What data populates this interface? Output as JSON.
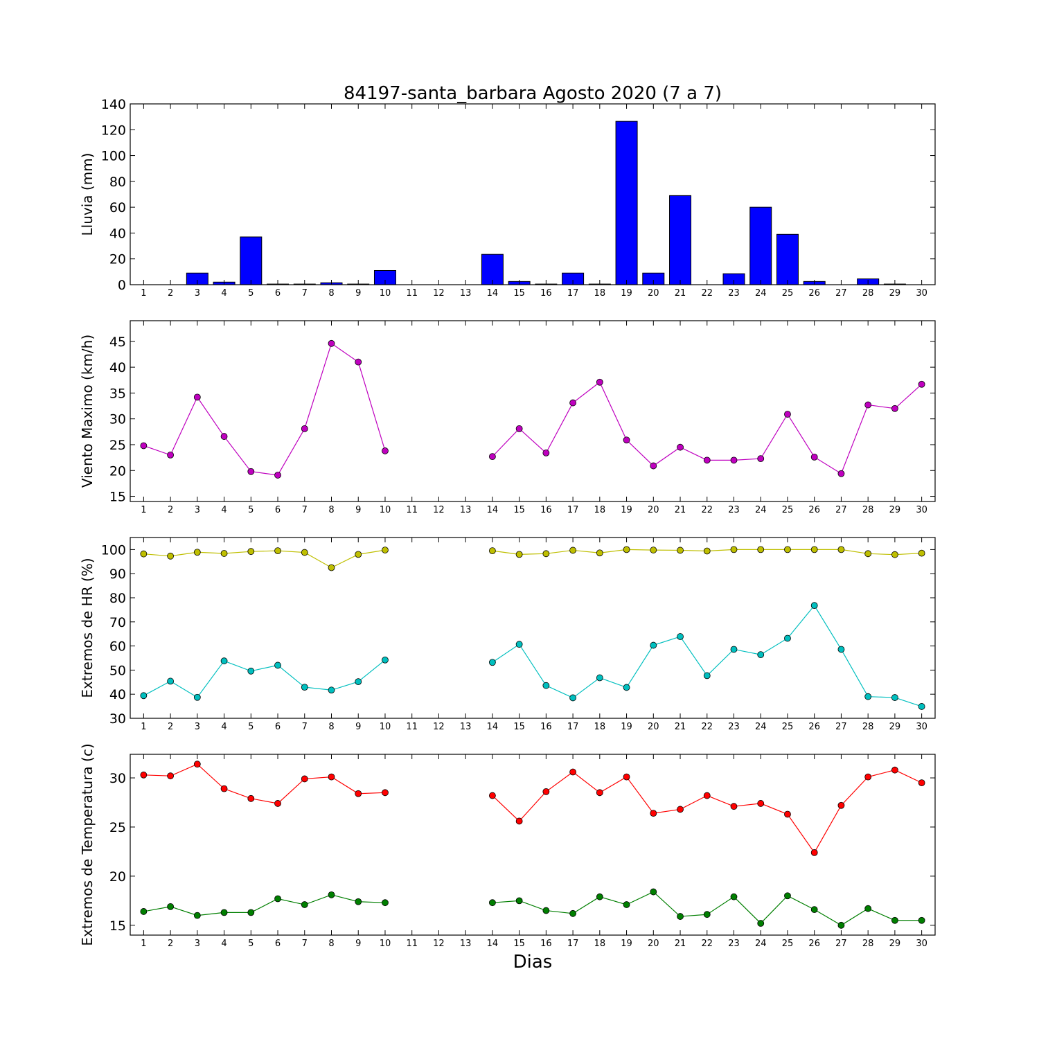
{
  "figure": {
    "title": "84197-santa_barbara Agosto 2020  (7 a 7)",
    "xlabel": "Dias"
  },
  "chart_data": [
    {
      "type": "bar",
      "ylabel": "Lluvia (mm)",
      "ylim": [
        0,
        140
      ],
      "yticks": [
        0,
        20,
        40,
        60,
        80,
        100,
        120,
        140
      ],
      "x": [
        1,
        2,
        3,
        4,
        5,
        6,
        7,
        8,
        9,
        10,
        11,
        12,
        13,
        14,
        15,
        16,
        17,
        18,
        19,
        20,
        21,
        22,
        23,
        24,
        25,
        26,
        27,
        28,
        29,
        30
      ],
      "series": [
        {
          "color": "#0000ff",
          "values": [
            0,
            0,
            9,
            2,
            37,
            0.5,
            0.5,
            1.5,
            0.5,
            11,
            0,
            0,
            0,
            23.5,
            2.5,
            0.5,
            9,
            0.5,
            126.5,
            9,
            69,
            0,
            8.5,
            60,
            39,
            2.5,
            0,
            4.5,
            0.5,
            0
          ]
        }
      ]
    },
    {
      "type": "line",
      "ylabel": "Viento Maximo (km/h)",
      "ylim": [
        14,
        49
      ],
      "yticks": [
        15,
        20,
        25,
        30,
        35,
        40,
        45
      ],
      "x": [
        1,
        2,
        3,
        4,
        5,
        6,
        7,
        8,
        9,
        10,
        11,
        12,
        13,
        14,
        15,
        16,
        17,
        18,
        19,
        20,
        21,
        22,
        23,
        24,
        25,
        26,
        27,
        28,
        29,
        30
      ],
      "series": [
        {
          "color": "#bf00bf",
          "values": [
            24.8,
            23.0,
            34.2,
            26.6,
            19.8,
            19.1,
            28.1,
            44.6,
            41.0,
            23.8,
            null,
            null,
            null,
            22.7,
            28.1,
            23.4,
            33.1,
            37.1,
            25.9,
            20.9,
            24.5,
            22.0,
            22.0,
            22.3,
            30.9,
            22.6,
            19.4,
            32.7,
            32.0,
            36.7
          ]
        }
      ]
    },
    {
      "type": "line",
      "ylabel": "Extremos de HR (%)",
      "ylim": [
        30,
        105
      ],
      "yticks": [
        30,
        40,
        50,
        60,
        70,
        80,
        90,
        100
      ],
      "x": [
        1,
        2,
        3,
        4,
        5,
        6,
        7,
        8,
        9,
        10,
        11,
        12,
        13,
        14,
        15,
        16,
        17,
        18,
        19,
        20,
        21,
        22,
        23,
        24,
        25,
        26,
        27,
        28,
        29,
        30
      ],
      "series": [
        {
          "color": "#bfbf00",
          "values": [
            98.2,
            97.3,
            98.9,
            98.4,
            99.2,
            99.5,
            98.8,
            92.5,
            98.0,
            99.8,
            null,
            null,
            null,
            99.5,
            98.0,
            98.3,
            99.7,
            98.6,
            100,
            99.8,
            99.7,
            99.4,
            100,
            100,
            100,
            100,
            100,
            98.3,
            97.9,
            98.5
          ]
        },
        {
          "color": "#00bfbf",
          "values": [
            39.4,
            45.4,
            38.7,
            53.8,
            49.6,
            52.0,
            42.9,
            41.7,
            45.2,
            54.2,
            null,
            null,
            null,
            53.2,
            60.7,
            43.6,
            38.5,
            46.8,
            42.8,
            60.3,
            63.9,
            47.7,
            58.6,
            56.4,
            63.2,
            76.8,
            58.6,
            39.0,
            38.6,
            34.9
          ]
        }
      ]
    },
    {
      "type": "line",
      "ylabel": "Extremos de Temperatura (c)",
      "ylim": [
        14,
        32.4
      ],
      "yticks": [
        15,
        20,
        25,
        30
      ],
      "x": [
        1,
        2,
        3,
        4,
        5,
        6,
        7,
        8,
        9,
        10,
        11,
        12,
        13,
        14,
        15,
        16,
        17,
        18,
        19,
        20,
        21,
        22,
        23,
        24,
        25,
        26,
        27,
        28,
        29,
        30
      ],
      "series": [
        {
          "color": "#ff0000",
          "values": [
            30.3,
            30.2,
            31.4,
            28.9,
            27.9,
            27.4,
            29.9,
            30.1,
            28.4,
            28.5,
            null,
            null,
            null,
            28.2,
            25.6,
            28.6,
            30.6,
            28.5,
            30.1,
            26.4,
            26.8,
            28.2,
            27.1,
            27.4,
            26.3,
            22.4,
            27.2,
            30.1,
            30.8,
            29.5
          ]
        },
        {
          "color": "#007f00",
          "values": [
            16.4,
            16.9,
            16.0,
            16.3,
            16.3,
            17.7,
            17.1,
            18.1,
            17.4,
            17.3,
            null,
            null,
            null,
            17.3,
            17.5,
            16.5,
            16.2,
            17.9,
            17.1,
            18.4,
            15.9,
            16.1,
            17.9,
            15.2,
            18.0,
            16.6,
            15.0,
            16.7,
            15.5,
            15.5
          ]
        }
      ]
    }
  ]
}
